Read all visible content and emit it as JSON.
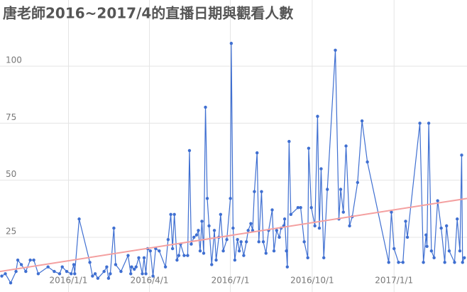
{
  "chart_data": {
    "type": "line",
    "title": "唐老師2016~2017/4的直播日期與觀看人數",
    "xlim": [
      "2015-10-16",
      "2017-03-24"
    ],
    "ylim": [
      1,
      129
    ],
    "xticks": [
      {
        "value": "2016-01-01",
        "label": "2016/1/1"
      },
      {
        "value": "2016-04-01",
        "label": "2016/4/1"
      },
      {
        "value": "2016-07-01",
        "label": "2016/7/1"
      },
      {
        "value": "2016-10-01",
        "label": "2016/10/1"
      },
      {
        "value": "2017-01-01",
        "label": "2017/1/1"
      }
    ],
    "yticks": [
      25,
      50,
      75,
      100
    ],
    "grid": true,
    "series": [
      {
        "color": "#3f6fd1",
        "markers": true,
        "x": [
          "2015-10-18",
          "2015-10-22",
          "2015-10-28",
          "2015-11-03",
          "2015-11-05",
          "2015-11-09",
          "2015-11-14",
          "2015-11-19",
          "2015-11-23",
          "2015-11-28",
          "2015-12-09",
          "2015-12-16",
          "2015-12-22",
          "2015-12-25",
          "2015-12-30",
          "2016-01-04",
          "2016-01-07",
          "2016-01-08",
          "2016-01-13",
          "2016-01-25",
          "2016-01-28",
          "2016-01-31",
          "2016-02-03",
          "2016-02-10",
          "2016-02-13",
          "2016-02-15",
          "2016-02-17",
          "2016-02-21",
          "2016-02-23",
          "2016-02-29",
          "2016-03-08",
          "2016-03-11",
          "2016-03-12",
          "2016-03-15",
          "2016-03-17",
          "2016-03-20",
          "2016-03-24",
          "2016-03-26",
          "2016-03-28",
          "2016-03-30",
          "2016-04-02",
          "2016-04-05",
          "2016-04-08",
          "2016-04-12",
          "2016-04-19",
          "2016-04-22",
          "2016-04-25",
          "2016-04-27",
          "2016-04-29",
          "2016-05-02",
          "2016-05-04",
          "2016-05-06",
          "2016-05-10",
          "2016-05-14",
          "2016-05-16",
          "2016-05-18",
          "2016-05-21",
          "2016-05-24",
          "2016-05-26",
          "2016-05-28",
          "2016-05-30",
          "2016-06-01",
          "2016-06-03",
          "2016-06-05",
          "2016-06-07",
          "2016-06-10",
          "2016-06-13",
          "2016-06-15",
          "2016-06-18",
          "2016-06-20",
          "2016-06-23",
          "2016-06-27",
          "2016-07-01",
          "2016-07-02",
          "2016-07-04",
          "2016-07-06",
          "2016-07-09",
          "2016-07-11",
          "2016-07-13",
          "2016-07-16",
          "2016-07-19",
          "2016-07-21",
          "2016-07-24",
          "2016-07-26",
          "2016-07-28",
          "2016-07-31",
          "2016-08-02",
          "2016-08-05",
          "2016-08-07",
          "2016-08-10",
          "2016-08-13",
          "2016-08-17",
          "2016-08-19",
          "2016-08-22",
          "2016-08-25",
          "2016-08-27",
          "2016-08-30",
          "2016-08-31",
          "2016-09-02",
          "2016-09-03",
          "2016-09-05",
          "2016-09-07",
          "2016-09-15",
          "2016-09-18",
          "2016-09-22",
          "2016-09-26",
          "2016-09-27",
          "2016-09-30",
          "2016-10-04",
          "2016-10-07",
          "2016-10-09",
          "2016-10-11",
          "2016-10-14",
          "2016-10-18",
          "2016-10-27",
          "2016-10-31",
          "2016-11-02",
          "2016-11-05",
          "2016-11-08",
          "2016-11-12",
          "2016-11-15",
          "2016-11-21",
          "2016-11-26",
          "2016-12-02",
          "2016-12-26",
          "2016-12-29",
          "2017-01-01",
          "2017-01-06",
          "2017-01-11",
          "2017-01-14",
          "2017-01-16",
          "2017-01-30",
          "2017-02-03",
          "2017-02-06",
          "2017-02-07",
          "2017-02-09",
          "2017-02-12",
          "2017-02-15",
          "2017-02-19",
          "2017-02-23",
          "2017-02-27",
          "2017-03-01",
          "2017-03-04",
          "2017-03-10",
          "2017-03-13",
          "2017-03-16",
          "2017-03-18",
          "2017-03-19",
          "2017-03-21"
        ],
        "values": [
          8,
          9,
          5,
          10,
          15,
          13,
          10,
          15,
          15,
          9,
          12,
          10,
          9,
          12,
          10,
          9,
          13,
          9,
          33,
          14,
          8,
          9,
          7,
          10,
          12,
          7,
          9,
          29,
          13,
          10,
          17,
          9,
          12,
          11,
          12,
          16,
          9,
          16,
          9,
          20,
          19,
          8,
          20,
          19,
          12,
          24,
          35,
          20,
          35,
          15,
          17,
          22,
          17,
          17,
          63,
          22,
          25,
          26,
          28,
          19,
          32,
          18,
          82,
          42,
          30,
          13,
          28,
          15,
          25,
          35,
          19,
          24,
          42,
          110,
          29,
          15,
          24,
          19,
          23,
          17,
          23,
          28,
          31,
          28,
          45,
          62,
          23,
          45,
          23,
          18,
          28,
          37,
          19,
          28,
          25,
          29,
          30,
          33,
          19,
          12,
          67,
          35,
          38,
          38,
          23,
          16,
          64,
          38,
          30,
          78,
          29,
          55,
          16,
          46,
          107,
          33,
          46,
          36,
          65,
          30,
          34,
          49,
          76,
          58,
          14,
          36,
          20,
          14,
          14,
          32,
          25,
          75,
          14,
          26,
          21,
          75,
          19,
          16,
          41,
          29,
          14,
          30,
          19,
          14,
          33,
          19,
          61,
          14,
          16
        ]
      },
      {
        "color": "#f4a0a0",
        "markers": false,
        "x": [
          "2015-10-16",
          "2017-03-24"
        ],
        "values": [
          10,
          42
        ]
      }
    ]
  }
}
